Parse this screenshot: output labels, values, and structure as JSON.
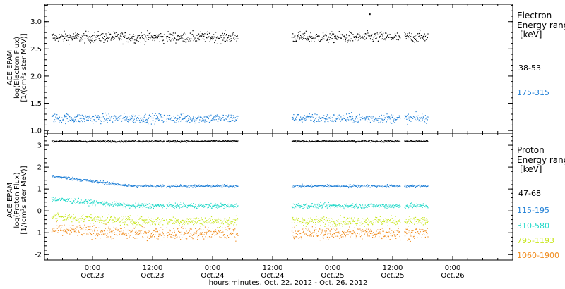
{
  "chart_data": [
    {
      "type": "scatter",
      "panel": "electron",
      "ylabel_lines": [
        "ACE EPAM",
        "log(Electron Flux)",
        "[1/(cm²s ster MeV)]"
      ],
      "ylim": [
        0.95,
        3.32
      ],
      "yticks": [
        "1.0",
        "1.5",
        "2.0",
        "2.5",
        "3.0"
      ],
      "ytick_values": [
        1.0,
        1.5,
        2.0,
        2.5,
        3.0
      ],
      "legend_title_lines": [
        "Electron",
        "Energy range",
        "[keV]"
      ],
      "series": [
        {
          "name": "38-53",
          "color": "#000000",
          "level": 2.72,
          "spread": 0.07
        },
        {
          "name": "175-315",
          "color": "#1f7fd6",
          "level": 1.23,
          "spread": 0.06
        }
      ],
      "spike": {
        "time_hours": 55.3,
        "value": 3.15
      }
    },
    {
      "type": "scatter",
      "panel": "proton",
      "ylabel_lines": [
        "ACE EPAM",
        "log(Proton Flux)",
        "[1/(cm²s ster MeV)]"
      ],
      "ylim": [
        -2.25,
        3.55
      ],
      "yticks": [
        "-2",
        "-1",
        "0",
        "1",
        "2",
        "3"
      ],
      "ytick_values": [
        -2,
        -1,
        0,
        1,
        2,
        3
      ],
      "legend_title_lines": [
        "Proton",
        "Energy range",
        "[keV]"
      ],
      "series": [
        {
          "name": "47-68",
          "color": "#000000",
          "level": 3.2,
          "spread": 0.03
        },
        {
          "name": "115-195",
          "color": "#1f7fd6",
          "level": 1.15,
          "spread": 0.05,
          "early_level": 1.6
        },
        {
          "name": "310-580",
          "color": "#22d8c8",
          "level": 0.25,
          "spread": 0.08,
          "early_level": 0.55
        },
        {
          "name": "795-1193",
          "color": "#c8e61e",
          "level": -0.45,
          "spread": 0.15,
          "early_level": -0.25
        },
        {
          "name": "1060-1900",
          "color": "#f08c1e",
          "level": -1.0,
          "spread": 0.2,
          "early_level": -0.85
        }
      ]
    }
  ],
  "x_axis": {
    "range_hours": [
      -9.6,
      84
    ],
    "ticks": [
      {
        "time": "0:00",
        "date": "Oct.23",
        "hours": 0
      },
      {
        "time": "12:00",
        "date": "Oct.23",
        "hours": 12
      },
      {
        "time": "0:00",
        "date": "Oct.24",
        "hours": 24
      },
      {
        "time": "12:00",
        "date": "Oct.24",
        "hours": 36
      },
      {
        "time": "0:00",
        "date": "Oct.25",
        "hours": 48
      },
      {
        "time": "12:00",
        "date": "Oct.25",
        "hours": 60
      },
      {
        "time": "0:00",
        "date": "Oct.26",
        "hours": 72
      }
    ],
    "xlabel": "hours:minutes, Oct. 22, 2012 - Oct. 26, 2012",
    "data_segments_hours": [
      [
        -8.2,
        14.3
      ],
      [
        14.7,
        29.0
      ],
      [
        39.8,
        54.0
      ],
      [
        54.2,
        61.5
      ],
      [
        62.3,
        67.0
      ]
    ]
  },
  "colors": {
    "background": "#ffffff",
    "frame": "#000000"
  }
}
